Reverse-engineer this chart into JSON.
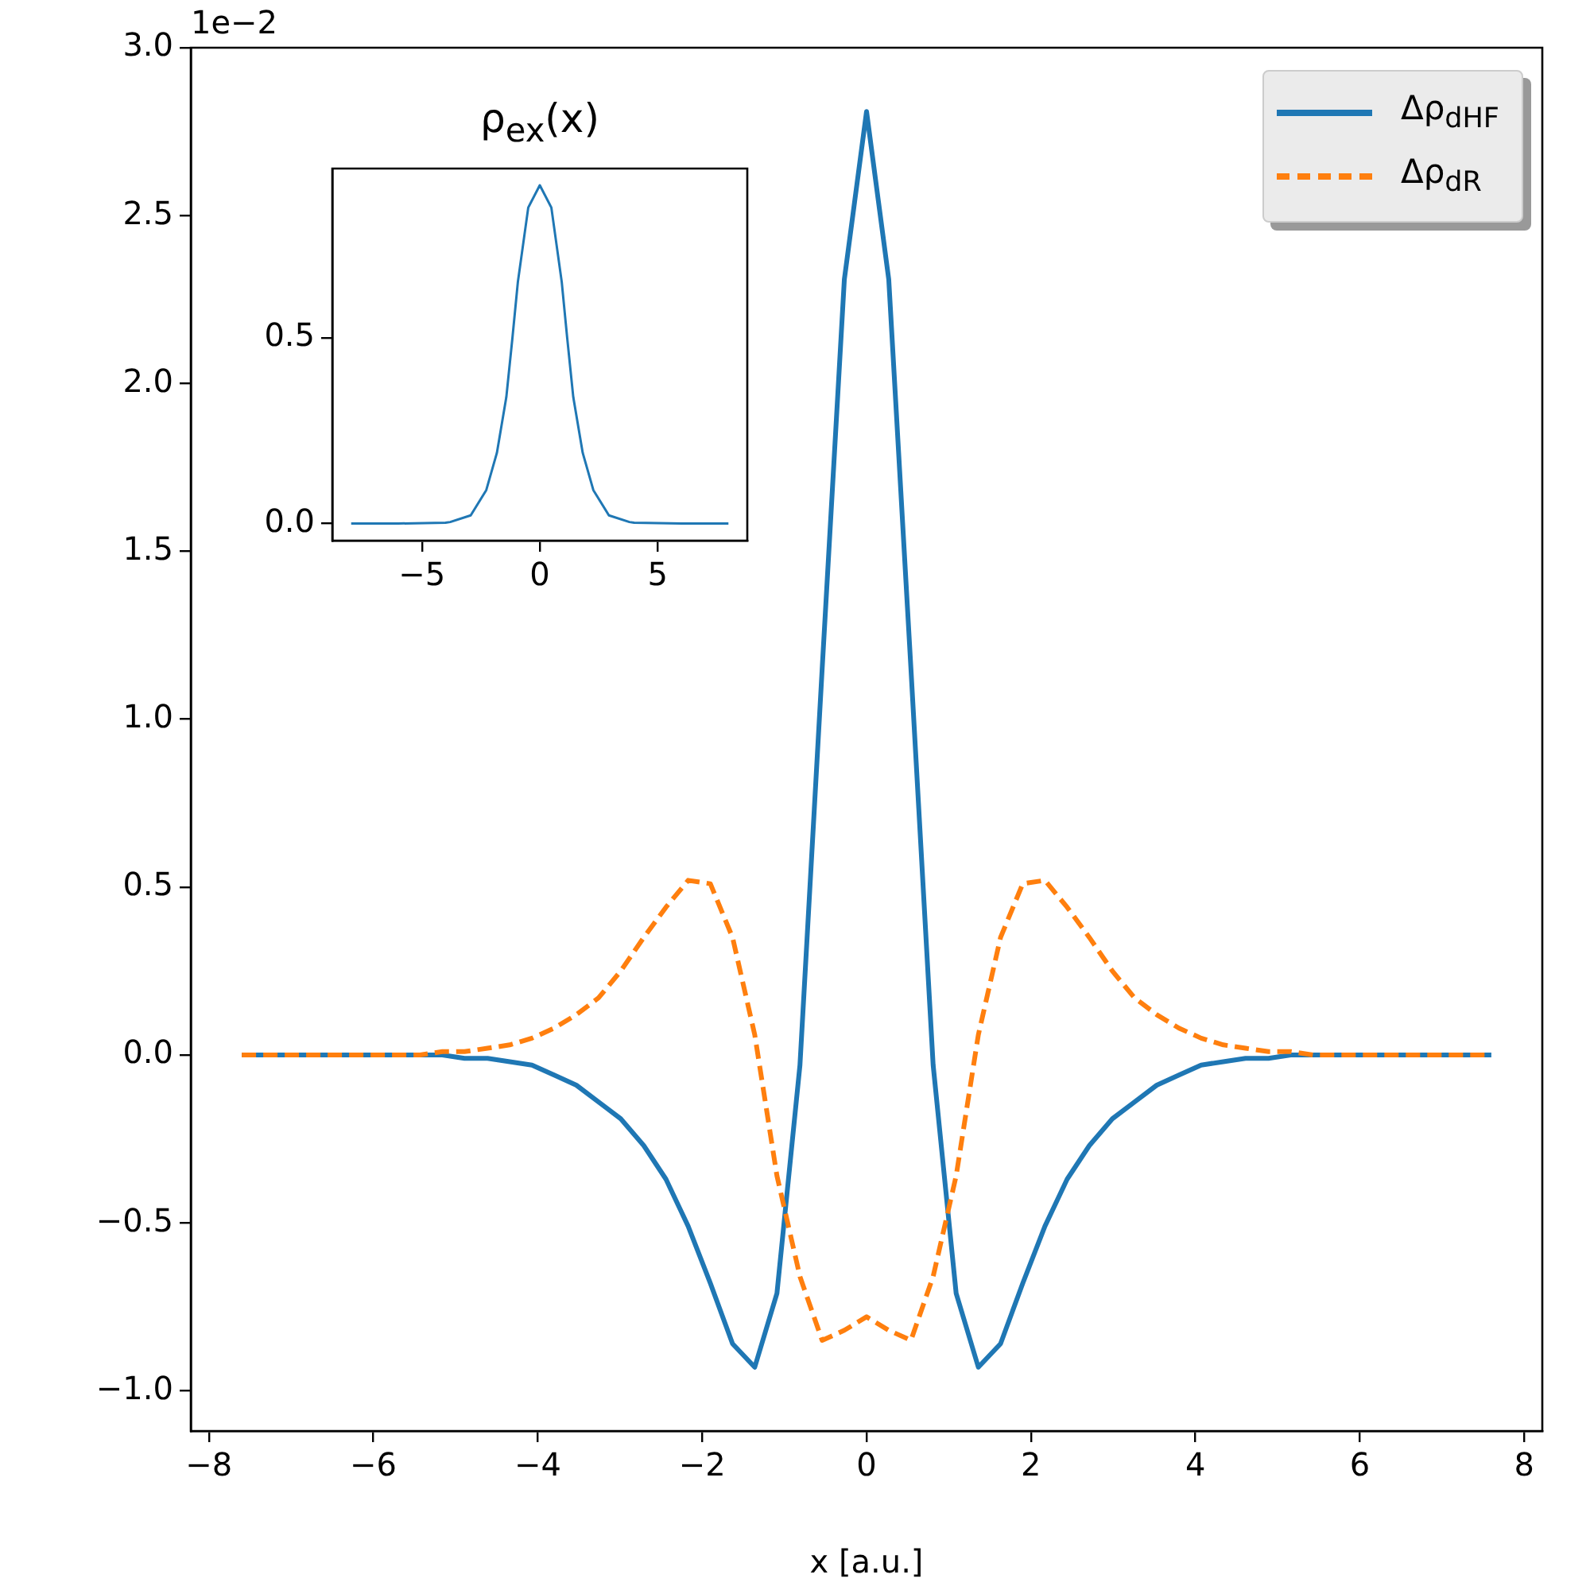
{
  "chart_data": [
    {
      "type": "line",
      "xlabel": "x [a.u.]",
      "annotations": [
        "1e−2"
      ],
      "legend": "top right",
      "x": [
        -7.6,
        -7.33,
        -7.06,
        -6.79,
        -6.51,
        -6.24,
        -5.97,
        -5.7,
        -5.43,
        -5.16,
        -4.89,
        -4.61,
        -4.34,
        -4.07,
        -3.8,
        -3.53,
        -3.26,
        -2.99,
        -2.71,
        -2.44,
        -2.17,
        -1.9,
        -1.63,
        -1.36,
        -1.09,
        -0.81,
        -0.54,
        -0.27,
        0,
        0.27,
        0.54,
        0.81,
        1.09,
        1.36,
        1.63,
        1.9,
        2.17,
        2.44,
        2.71,
        2.99,
        3.26,
        3.53,
        3.8,
        4.07,
        4.34,
        4.61,
        4.89,
        5.16,
        5.43,
        5.7,
        5.97,
        6.24,
        6.51,
        6.79,
        7.06,
        7.33,
        7.6
      ],
      "series": [
        {
          "name": "Δρ$_{dHF}$",
          "color": "#1f77b4",
          "line_style": "solid",
          "values": [
            0,
            0,
            0,
            0,
            0,
            0,
            0,
            0,
            0,
            0,
            -0.01,
            -0.01,
            -0.02,
            -0.03,
            -0.06,
            -0.09,
            -0.14,
            -0.19,
            -0.27,
            -0.37,
            -0.51,
            -0.68,
            -0.86,
            -0.93,
            -0.71,
            -0.03,
            1.15,
            2.31,
            2.81,
            2.31,
            1.15,
            -0.03,
            -0.71,
            -0.93,
            -0.86,
            -0.68,
            -0.51,
            -0.37,
            -0.27,
            -0.19,
            -0.14,
            -0.09,
            -0.06,
            -0.03,
            -0.02,
            -0.01,
            -0.01,
            0,
            0,
            0,
            0,
            0,
            0,
            0,
            0,
            0,
            0
          ]
        },
        {
          "name": "Δρ$_{dR}$",
          "color": "#ff7f0e",
          "line_style": "dashed",
          "values": [
            0,
            0,
            0,
            0,
            0,
            0,
            0,
            0,
            0,
            0.01,
            0.01,
            0.02,
            0.03,
            0.05,
            0.08,
            0.12,
            0.17,
            0.25,
            0.35,
            0.44,
            0.52,
            0.51,
            0.35,
            0.06,
            -0.36,
            -0.66,
            -0.85,
            -0.82,
            -0.78,
            -0.82,
            -0.85,
            -0.66,
            -0.36,
            0.06,
            0.35,
            0.51,
            0.52,
            0.44,
            0.35,
            0.25,
            0.17,
            0.12,
            0.08,
            0.05,
            0.03,
            0.02,
            0.01,
            0.01,
            0,
            0,
            0,
            0,
            0,
            0,
            0,
            0,
            0
          ]
        }
      ],
      "xlim": [
        -8.22,
        8.22
      ],
      "ylim": [
        -1.12,
        3.0
      ],
      "xticks": [
        {
          "value": -8,
          "label": "−8"
        },
        {
          "value": -6,
          "label": "−6"
        },
        {
          "value": -4,
          "label": "−4"
        },
        {
          "value": -2,
          "label": "−2"
        },
        0,
        2,
        4,
        6,
        8
      ],
      "yticks": [
        {
          "value": -1,
          "label": "−1.0"
        },
        {
          "value": -0.5,
          "label": "−0.5"
        },
        {
          "value": 0,
          "label": "0.0"
        },
        0.5,
        {
          "value": 1,
          "label": "1.0"
        },
        1.5,
        {
          "value": 2,
          "label": "2.0"
        },
        2.5,
        {
          "value": 3,
          "label": "3.0"
        }
      ]
    },
    {
      "type": "line",
      "title": "ρ$_{ex}$(x)",
      "color": "#1f77b4",
      "x": [
        -8,
        -6,
        -4,
        -3.8,
        -2.93,
        -2.27,
        -1.82,
        -1.42,
        -1.16,
        -0.93,
        -0.49,
        0,
        0.49,
        0.93,
        1.16,
        1.42,
        1.82,
        2.27,
        2.93,
        3.8,
        4,
        6,
        8
      ],
      "values": [
        0,
        0,
        0.002,
        0.004,
        0.022,
        0.09,
        0.19,
        0.34,
        0.5,
        0.65,
        0.85,
        0.91,
        0.85,
        0.65,
        0.5,
        0.34,
        0.19,
        0.09,
        0.022,
        0.004,
        0.002,
        0,
        0
      ],
      "xlim": [
        -8.8,
        8.8
      ],
      "ylim": [
        -0.046,
        0.955
      ],
      "xticks": [
        {
          "value": -5,
          "label": "−5"
        },
        0,
        5
      ],
      "yticks": [
        {
          "value": 0,
          "label": "0.0"
        },
        0.5
      ]
    }
  ]
}
